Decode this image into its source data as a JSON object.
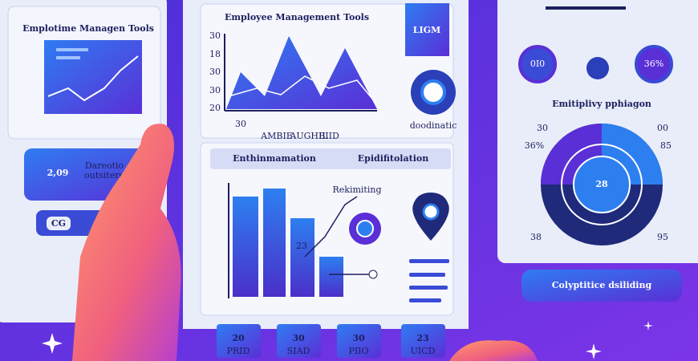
{
  "left_panel": {
    "title": "Emplotime Managen Tools",
    "card_value": "2,09",
    "card_caption": [
      "Dareotio",
      "outsitere"
    ],
    "button": "CG"
  },
  "center_panel": {
    "title": "Employee Management Tools",
    "chart_y_labels": [
      "30",
      "18",
      "30",
      "30",
      "20"
    ],
    "chart_x_labels": [
      "30",
      "AMBIE",
      "AUGHIL",
      "BIID"
    ],
    "badge": "LIGM",
    "icon_caption": "doodinatic",
    "tabs": [
      "Enthinmamation",
      "Epidifitolation"
    ],
    "bar_annotation": "Rekimiting",
    "bar_label": "23",
    "tiles": [
      {
        "value": "20",
        "label": "PRID"
      },
      {
        "value": "30",
        "label": "SIAD"
      },
      {
        "value": "30",
        "label": "PIIO"
      },
      {
        "value": "23",
        "label": "UICD"
      }
    ]
  },
  "right_panel": {
    "circle_labels": [
      "0I0",
      "36%"
    ],
    "title": "Emitiplivy pphiagon",
    "gauge_labels": [
      "30",
      "36%",
      "00",
      "85",
      "38",
      "95"
    ],
    "gauge_value": "28",
    "button": "Colyptitice dsiliding"
  }
}
